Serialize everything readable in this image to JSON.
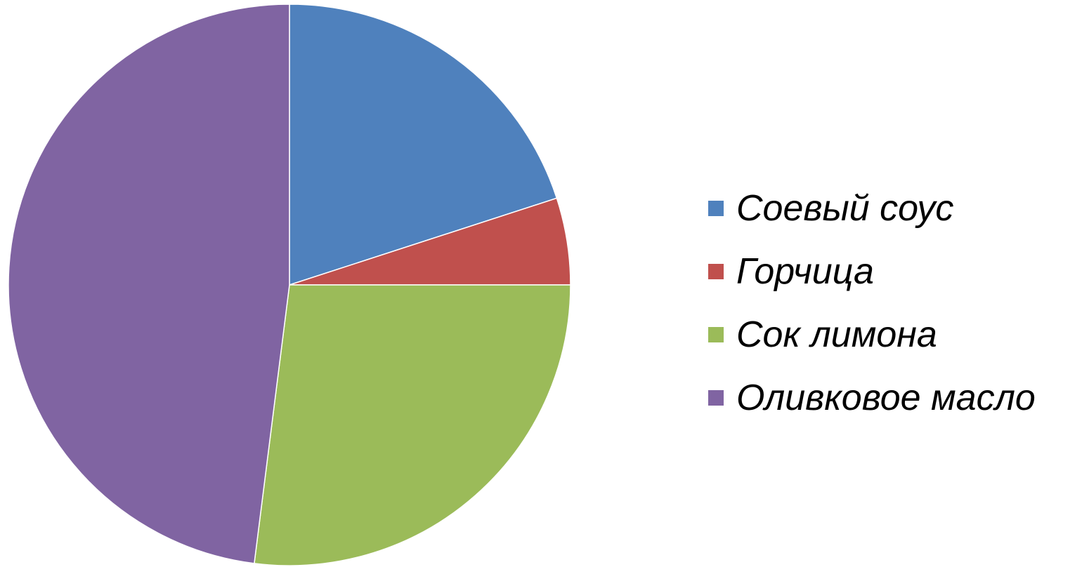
{
  "chart_data": {
    "type": "pie",
    "title": "",
    "legend_position": "right",
    "start_angle_deg": 0,
    "direction": "clockwise",
    "slices": [
      {
        "label": "Соевый соус",
        "value": 20,
        "color": "#4F81BD"
      },
      {
        "label": "Горчица",
        "value": 5,
        "color": "#C0504D"
      },
      {
        "label": "Сок лимона",
        "value": 27,
        "color": "#9BBB59"
      },
      {
        "label": "Оливковое масло",
        "value": 48,
        "color": "#8064A2"
      }
    ]
  }
}
